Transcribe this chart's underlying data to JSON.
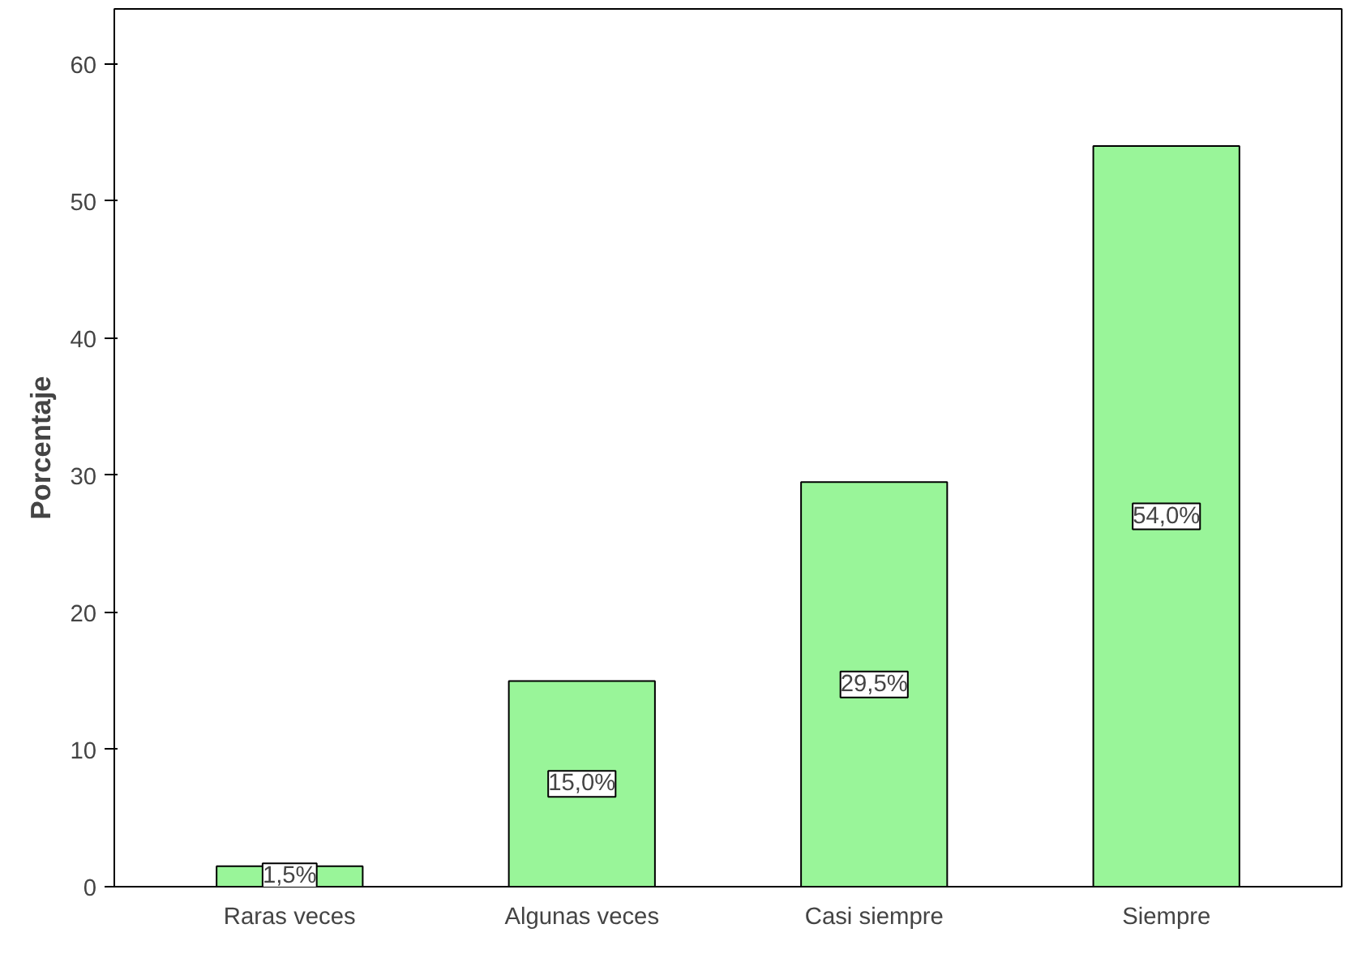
{
  "chart_data": {
    "type": "bar",
    "ylabel": "Porcentaje",
    "categories": [
      "Raras veces",
      "Algunas veces",
      "Casi siempre",
      "Siempre"
    ],
    "values": [
      1.5,
      15.0,
      29.5,
      54.0
    ],
    "value_labels": [
      "1,5%",
      "15,0%",
      "29,5%",
      "54,0%"
    ],
    "color": "#99f599",
    "ylim": [
      0,
      64
    ],
    "yticks": [
      0,
      10,
      20,
      30,
      40,
      50,
      60
    ],
    "grid": false
  }
}
